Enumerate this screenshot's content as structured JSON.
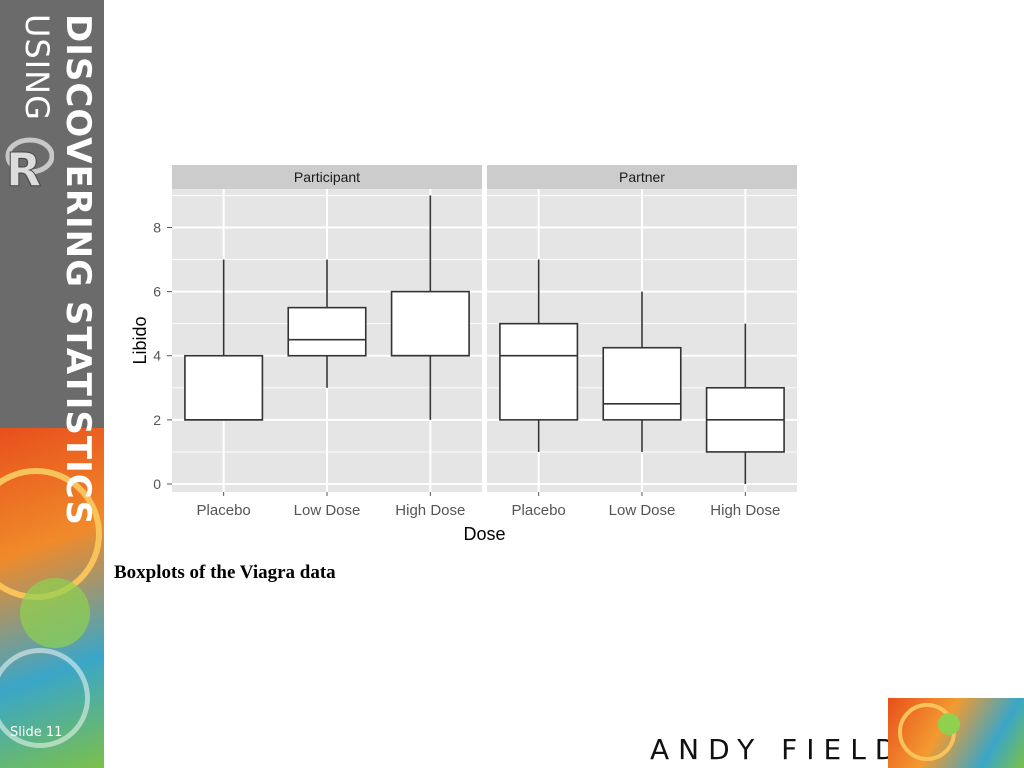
{
  "slide": {
    "series_word": "DISCOVERING STATISTICS",
    "using_word": "USING",
    "r_logo_letter": "R",
    "slide_label": "Slide 11",
    "caption": "Boxplots of the Viagra data",
    "author": "ANDY FIELD"
  },
  "colors": {
    "panel_bg": "#e5e5e5",
    "strip_bg": "#cccccc",
    "grid": "#ffffff",
    "box": "#ffffff",
    "line": "#333333",
    "sidebar": "#6b6b6b"
  },
  "chart_data": {
    "type": "boxplot",
    "facets": [
      "Participant",
      "Partner"
    ],
    "categories": [
      "Placebo",
      "Low Dose",
      "High Dose"
    ],
    "xlabel": "Dose",
    "ylabel": "Libido",
    "ylim": [
      -0.25,
      9.2
    ],
    "yticks": [
      0,
      2,
      4,
      6,
      8
    ],
    "boxes": {
      "Participant": [
        {
          "category": "Placebo",
          "min": 2,
          "q1": 2,
          "median": 2,
          "q3": 4,
          "max": 7
        },
        {
          "category": "Low Dose",
          "min": 3,
          "q1": 4,
          "median": 4.5,
          "q3": 5.5,
          "max": 7
        },
        {
          "category": "High Dose",
          "min": 2,
          "q1": 4,
          "median": 4,
          "q3": 6,
          "max": 9
        }
      ],
      "Partner": [
        {
          "category": "Placebo",
          "min": 1,
          "q1": 2,
          "median": 4,
          "q3": 5,
          "max": 7
        },
        {
          "category": "Low Dose",
          "min": 1,
          "q1": 2,
          "median": 2.5,
          "q3": 4.25,
          "max": 6
        },
        {
          "category": "High Dose",
          "min": 0,
          "q1": 1,
          "median": 2,
          "q3": 3,
          "max": 5
        }
      ]
    },
    "grid": true
  }
}
